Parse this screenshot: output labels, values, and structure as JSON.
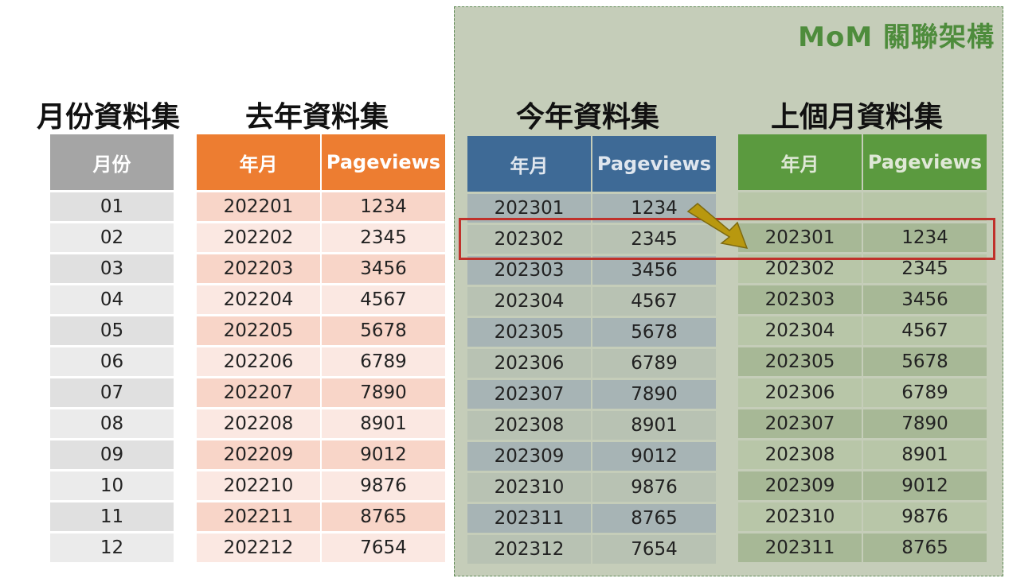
{
  "mom_title": "MoM 關聯架構",
  "month_dataset": {
    "title": "月份資料集",
    "header": "月份",
    "rows": [
      "01",
      "02",
      "03",
      "04",
      "05",
      "06",
      "07",
      "08",
      "09",
      "10",
      "11",
      "12"
    ]
  },
  "last_year_dataset": {
    "title": "去年資料集",
    "headers": [
      "年月",
      "Pageviews"
    ],
    "rows": [
      [
        "202201",
        "1234"
      ],
      [
        "202202",
        "2345"
      ],
      [
        "202203",
        "3456"
      ],
      [
        "202204",
        "4567"
      ],
      [
        "202205",
        "5678"
      ],
      [
        "202206",
        "6789"
      ],
      [
        "202207",
        "7890"
      ],
      [
        "202208",
        "8901"
      ],
      [
        "202209",
        "9012"
      ],
      [
        "202210",
        "9876"
      ],
      [
        "202211",
        "8765"
      ],
      [
        "202212",
        "7654"
      ]
    ]
  },
  "this_year_dataset": {
    "title": "今年資料集",
    "headers": [
      "年月",
      "Pageviews"
    ],
    "rows": [
      [
        "202301",
        "1234"
      ],
      [
        "202302",
        "2345"
      ],
      [
        "202303",
        "3456"
      ],
      [
        "202304",
        "4567"
      ],
      [
        "202305",
        "5678"
      ],
      [
        "202306",
        "6789"
      ],
      [
        "202307",
        "7890"
      ],
      [
        "202308",
        "8901"
      ],
      [
        "202309",
        "9012"
      ],
      [
        "202310",
        "9876"
      ],
      [
        "202311",
        "8765"
      ],
      [
        "202312",
        "7654"
      ]
    ]
  },
  "prev_month_dataset": {
    "title": "上個月資料集",
    "headers": [
      "年月",
      "Pageviews"
    ],
    "rows": [
      [
        "",
        ""
      ],
      [
        "202301",
        "1234"
      ],
      [
        "202302",
        "2345"
      ],
      [
        "202303",
        "3456"
      ],
      [
        "202304",
        "4567"
      ],
      [
        "202305",
        "5678"
      ],
      [
        "202306",
        "6789"
      ],
      [
        "202307",
        "7890"
      ],
      [
        "202308",
        "8901"
      ],
      [
        "202309",
        "9012"
      ],
      [
        "202310",
        "9876"
      ],
      [
        "202311",
        "8765"
      ]
    ]
  },
  "colors": {
    "mom_panel": "#c5cdb9",
    "mom_title": "#4e8c3c",
    "highlight_border": "#c0312b",
    "arrow": "#b8980f"
  }
}
